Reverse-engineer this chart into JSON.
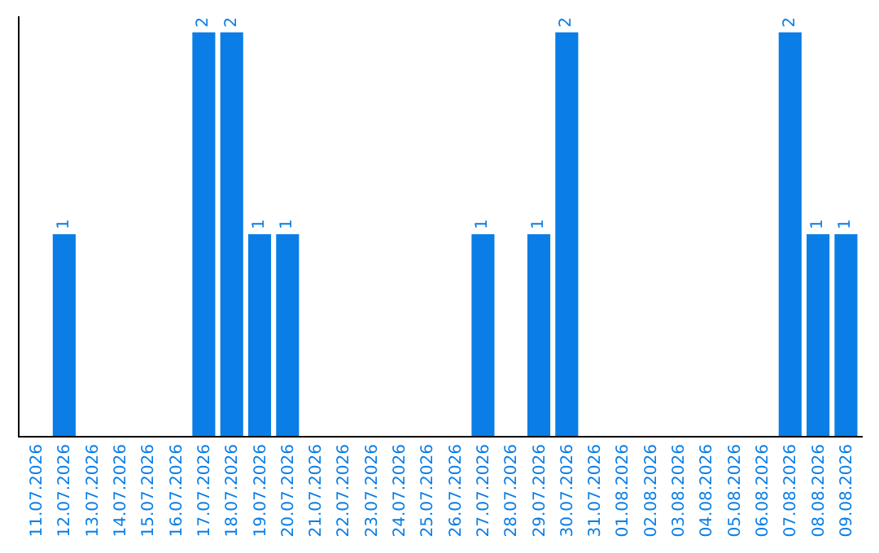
{
  "chart_data": {
    "type": "bar",
    "categories": [
      "11.07.2026",
      "12.07.2026",
      "13.07.2026",
      "14.07.2026",
      "15.07.2026",
      "16.07.2026",
      "17.07.2026",
      "18.07.2026",
      "19.07.2026",
      "20.07.2026",
      "21.07.2026",
      "22.07.2026",
      "23.07.2026",
      "24.07.2026",
      "25.07.2026",
      "26.07.2026",
      "27.07.2026",
      "28.07.2026",
      "29.07.2026",
      "30.07.2026",
      "31.07.2026",
      "01.08.2026",
      "02.08.2026",
      "03.08.2026",
      "04.08.2026",
      "05.08.2026",
      "06.08.2026",
      "07.08.2026",
      "08.08.2026",
      "09.08.2026"
    ],
    "values": [
      null,
      1,
      null,
      null,
      null,
      null,
      2,
      2,
      1,
      1,
      null,
      null,
      null,
      null,
      null,
      null,
      1,
      null,
      1,
      2,
      null,
      null,
      null,
      null,
      null,
      null,
      null,
      2,
      1,
      1
    ],
    "color": "#0a7ee6",
    "ylim": [
      0,
      2.08
    ],
    "data_labels": true,
    "tick_labels": "x"
  }
}
